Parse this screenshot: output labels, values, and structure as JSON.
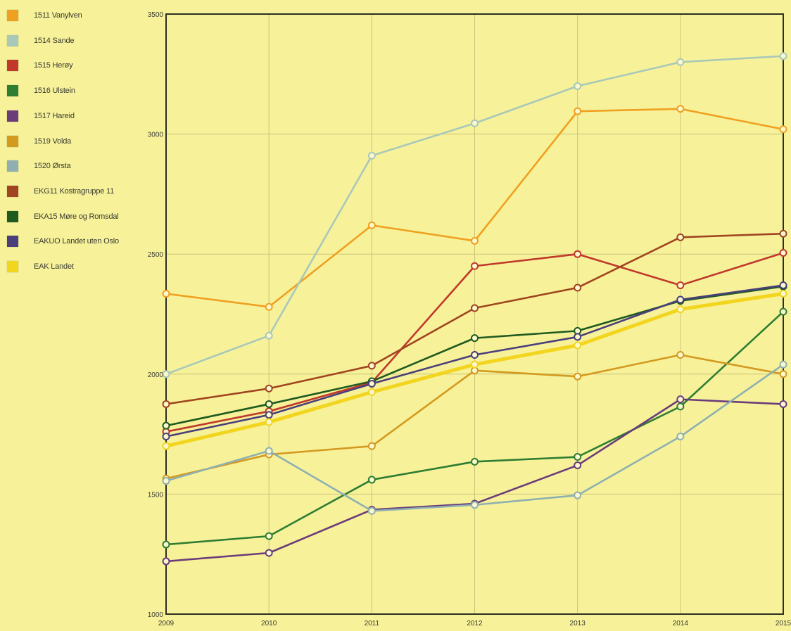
{
  "chart_data": {
    "type": "line",
    "title": "",
    "xlabel": "",
    "ylabel": "",
    "x": [
      "2009",
      "2010",
      "2011",
      "2012",
      "2013",
      "2014",
      "2015"
    ],
    "ylim": [
      1000,
      3500
    ],
    "yticks": [
      "1000",
      "1500",
      "2000",
      "2500",
      "3000",
      "3500"
    ],
    "grid": true,
    "legend_position": "left",
    "series": [
      {
        "name": "1511 Vanylven",
        "color": "#f0a020",
        "values": [
          2335,
          2280,
          2620,
          2555,
          3095,
          3105,
          3020
        ]
      },
      {
        "name": "1514 Sande",
        "color": "#a8c8b8",
        "values": [
          2000,
          2160,
          2910,
          3045,
          3200,
          3300,
          3325
        ]
      },
      {
        "name": "1515 Herøy",
        "color": "#c0392b",
        "values": [
          1760,
          1845,
          1965,
          2450,
          2500,
          2370,
          2505
        ]
      },
      {
        "name": "1516 Ulstein",
        "color": "#2e7d32",
        "values": [
          1290,
          1325,
          1560,
          1635,
          1655,
          1865,
          2260
        ]
      },
      {
        "name": "1517 Hareid",
        "color": "#6a3d7a",
        "values": [
          1220,
          1255,
          1435,
          1460,
          1620,
          1895,
          1875
        ]
      },
      {
        "name": "1519 Volda",
        "color": "#d49a20",
        "values": [
          1565,
          1665,
          1700,
          2015,
          1990,
          2080,
          2000
        ]
      },
      {
        "name": "1520 Ørsta",
        "color": "#8fb0b0",
        "values": [
          1555,
          1680,
          1430,
          1455,
          1495,
          1740,
          2040
        ]
      },
      {
        "name": "EKG11 Kostragruppe 11",
        "color": "#a0451f",
        "values": [
          1875,
          1940,
          2035,
          2275,
          2360,
          2570,
          2585
        ]
      },
      {
        "name": "EKA15 Møre og Romsdal",
        "color": "#1f5a1f",
        "values": [
          1785,
          1875,
          1970,
          2150,
          2180,
          2305,
          2365
        ]
      },
      {
        "name": "EAKUO Landet uten Oslo",
        "color": "#4a3f7a",
        "values": [
          1740,
          1830,
          1960,
          2080,
          2155,
          2310,
          2370
        ]
      },
      {
        "name": "EAK Landet",
        "color": "#f2d51f",
        "values": [
          1700,
          1800,
          1925,
          2040,
          2120,
          2270,
          2335
        ]
      }
    ]
  }
}
